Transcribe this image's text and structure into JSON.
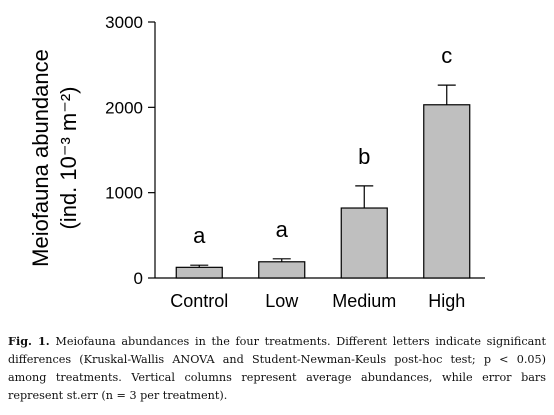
{
  "chart_data": {
    "type": "bar",
    "categories": [
      "Control",
      "Low",
      "Medium",
      "High"
    ],
    "values": [
      125,
      190,
      820,
      2030
    ],
    "errors": [
      25,
      35,
      260,
      230
    ],
    "letters": [
      "a",
      "a",
      "b",
      "c"
    ],
    "ylabel_line1": "Meiofauna abundance",
    "ylabel_line2": "(ind. 10⁻³ m⁻²)",
    "yticks": [
      0,
      1000,
      2000,
      3000
    ],
    "ylim": [
      0,
      3000
    ],
    "bar_color": "#bfbfbf"
  },
  "caption": {
    "label": "Fig. 1.",
    "text": " Meiofauna abundances in the four treatments. Different letters indicate significant differences (Kruskal-Wallis ANOVA and Student-Newman-Keuls post-hoc test; p < 0.05) among treatments. Vertical columns represent average abundances, while error bars represent st.err (n = 3 per treatment)."
  }
}
